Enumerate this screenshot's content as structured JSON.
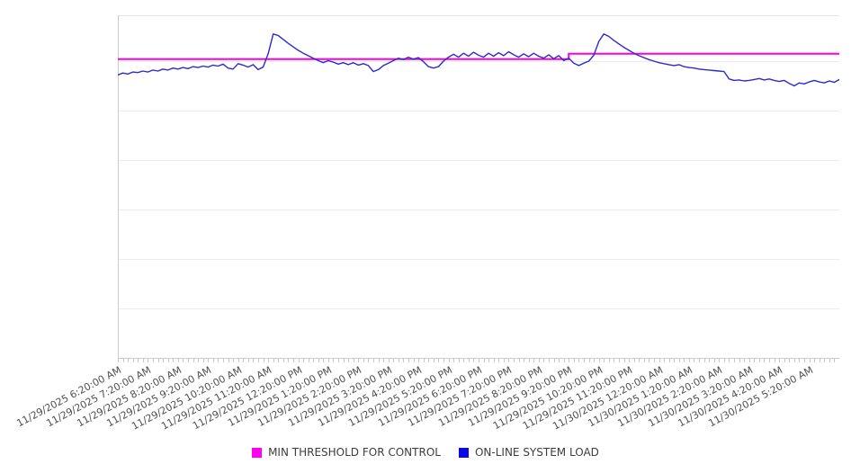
{
  "colors": {
    "background": "#ffffff",
    "threshold_line": "#ff00dd",
    "load_line": "#2b2bcb",
    "legend_threshold_swatch": "#ff00f0",
    "legend_load_swatch": "#0a0ae8",
    "gridline": "#ececec",
    "plot_top_border": "#e4e4e4",
    "axis_line": "#cbcbcb",
    "tick": "#c9c9c9",
    "axis_label_text": "#4f4f4f",
    "legend_text": "#3d3d3d"
  },
  "legend": {
    "items": [
      {
        "label": "MIN THRESHOLD FOR CONTROL",
        "swatch_color": "#ff00f0",
        "swatch_icon": "threshold-swatch"
      },
      {
        "label": "ON-LINE SYSTEM LOAD",
        "swatch_color": "#0a0ae8",
        "swatch_icon": "load-swatch"
      }
    ]
  },
  "chart_data": {
    "type": "line",
    "title": "",
    "xlabel": "",
    "ylabel": "",
    "y_axis_tick_labels_visible": false,
    "y_units": "unlabeled-gridline-units",
    "ylim": [
      0,
      6.93
    ],
    "y_gridline_values": [
      1,
      2,
      3,
      4,
      5,
      6
    ],
    "grid": "horizontal-only",
    "legend_position": "bottom-center",
    "n_points": 145,
    "x_minor_ticks": 145,
    "x_labels": [
      "11/29/2025 6:20:00 AM",
      "11/29/2025 7:20:00 AM",
      "11/29/2025 8:20:00 AM",
      "11/29/2025 9:20:00 AM",
      "11/29/2025 10:20:00 AM",
      "11/29/2025 11:20:00 AM",
      "11/29/2025 12:20:00 PM",
      "11/29/2025 1:20:00 PM",
      "11/29/2025 2:20:00 PM",
      "11/29/2025 3:20:00 PM",
      "11/29/2025 4:20:00 PM",
      "11/29/2025 5:20:00 PM",
      "11/29/2025 6:20:00 PM",
      "11/29/2025 7:20:00 PM",
      "11/29/2025 8:20:00 PM",
      "11/29/2025 9:20:00 PM",
      "11/29/2025 10:20:00 PM",
      "11/29/2025 11:20:00 PM",
      "11/30/2025 12:20:00 AM",
      "11/30/2025 1:20:00 AM",
      "11/30/2025 2:20:00 AM",
      "11/30/2025 3:20:00 AM",
      "11/30/2025 4:20:00 AM",
      "11/30/2025 5:20:00 AM"
    ],
    "series": [
      {
        "name": "MIN THRESHOLD FOR CONTROL",
        "style": "step",
        "color": "#ff00dd",
        "segments": [
          {
            "from_point": 0,
            "to_point": 90,
            "value": 6.04
          },
          {
            "from_point": 90,
            "to_point": 144,
            "value": 6.15
          }
        ]
      },
      {
        "name": "ON-LINE SYSTEM LOAD",
        "style": "line",
        "color": "#2b2bcb",
        "values": [
          5.72,
          5.76,
          5.74,
          5.78,
          5.77,
          5.8,
          5.78,
          5.82,
          5.8,
          5.84,
          5.82,
          5.86,
          5.84,
          5.87,
          5.85,
          5.89,
          5.87,
          5.9,
          5.88,
          5.92,
          5.9,
          5.94,
          5.86,
          5.84,
          5.95,
          5.92,
          5.88,
          5.93,
          5.83,
          5.88,
          6.15,
          6.55,
          6.52,
          6.44,
          6.36,
          6.29,
          6.22,
          6.16,
          6.11,
          6.06,
          6.01,
          5.97,
          6.01,
          5.98,
          5.94,
          5.97,
          5.93,
          5.97,
          5.92,
          5.95,
          5.91,
          5.79,
          5.83,
          5.91,
          5.96,
          6.01,
          6.06,
          6.03,
          6.08,
          6.04,
          6.07,
          5.99,
          5.89,
          5.86,
          5.89,
          6.0,
          6.08,
          6.14,
          6.08,
          6.16,
          6.1,
          6.18,
          6.12,
          6.08,
          6.16,
          6.1,
          6.17,
          6.11,
          6.19,
          6.13,
          6.08,
          6.15,
          6.09,
          6.16,
          6.1,
          6.06,
          6.13,
          6.05,
          6.11,
          6.01,
          6.06,
          5.96,
          5.91,
          5.96,
          6.0,
          6.12,
          6.4,
          6.55,
          6.5,
          6.42,
          6.35,
          6.28,
          6.22,
          6.16,
          6.11,
          6.07,
          6.03,
          6.0,
          5.97,
          5.95,
          5.93,
          5.91,
          5.93,
          5.89,
          5.87,
          5.86,
          5.84,
          5.83,
          5.82,
          5.81,
          5.8,
          5.79,
          5.64,
          5.61,
          5.62,
          5.6,
          5.61,
          5.63,
          5.65,
          5.62,
          5.64,
          5.61,
          5.59,
          5.61,
          5.55,
          5.5,
          5.56,
          5.54,
          5.58,
          5.61,
          5.58,
          5.56,
          5.6,
          5.57,
          5.63
        ]
      }
    ]
  }
}
